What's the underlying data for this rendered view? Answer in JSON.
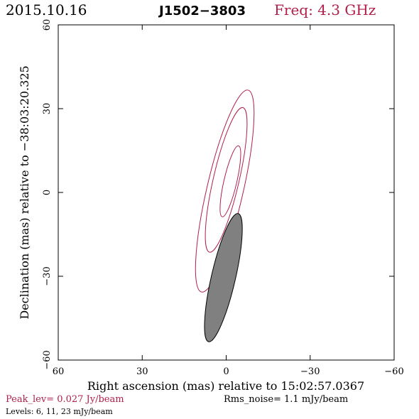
{
  "header": {
    "date": "2015.10.16",
    "source": "J1502−3803",
    "freq": "Freq: 4.3 GHz"
  },
  "footer": {
    "peak": "Peak_lev=  0.027 Jy/beam",
    "rms": "Rms_noise=   1.1 mJy/beam",
    "levels": "Levels:   6,  11,  23 mJy/beam"
  },
  "colors": {
    "accent": "#b0204a",
    "axis": "#000000",
    "beam_fill": "#808080"
  },
  "chart_data": {
    "type": "contour",
    "xlabel": "Right ascension (mas) relative to 15:02:57.0367",
    "ylabel": "Declination (mas) relative to −38:03:20.325",
    "xlim": [
      60,
      -60
    ],
    "ylim": [
      -60,
      60
    ],
    "x_ticks": [
      60,
      30,
      0,
      -30,
      -60
    ],
    "y_ticks": [
      -60,
      -30,
      0,
      30,
      60
    ],
    "x_tick_labels": [
      "60",
      "30",
      "0",
      "−30",
      "−60"
    ],
    "y_tick_labels": [
      "−60",
      "−30",
      "0",
      "30",
      "60"
    ],
    "contours": [
      {
        "level_mJy": 6,
        "cx": 0.5,
        "cy": 0.5,
        "semi_major": 37,
        "semi_minor": 6.5,
        "pa_deg": 13
      },
      {
        "level_mJy": 11,
        "cx": 0.0,
        "cy": 4.5,
        "semi_major": 26.5,
        "semi_minor": 4.6,
        "pa_deg": 13
      },
      {
        "level_mJy": 23,
        "cx": -1.5,
        "cy": 4.0,
        "semi_major": 13,
        "semi_minor": 2.3,
        "pa_deg": 13
      }
    ],
    "beam": {
      "cx": 1.0,
      "cy": -30.5,
      "semi_major": 23.5,
      "semi_minor": 4.3,
      "pa_deg": 13
    }
  }
}
